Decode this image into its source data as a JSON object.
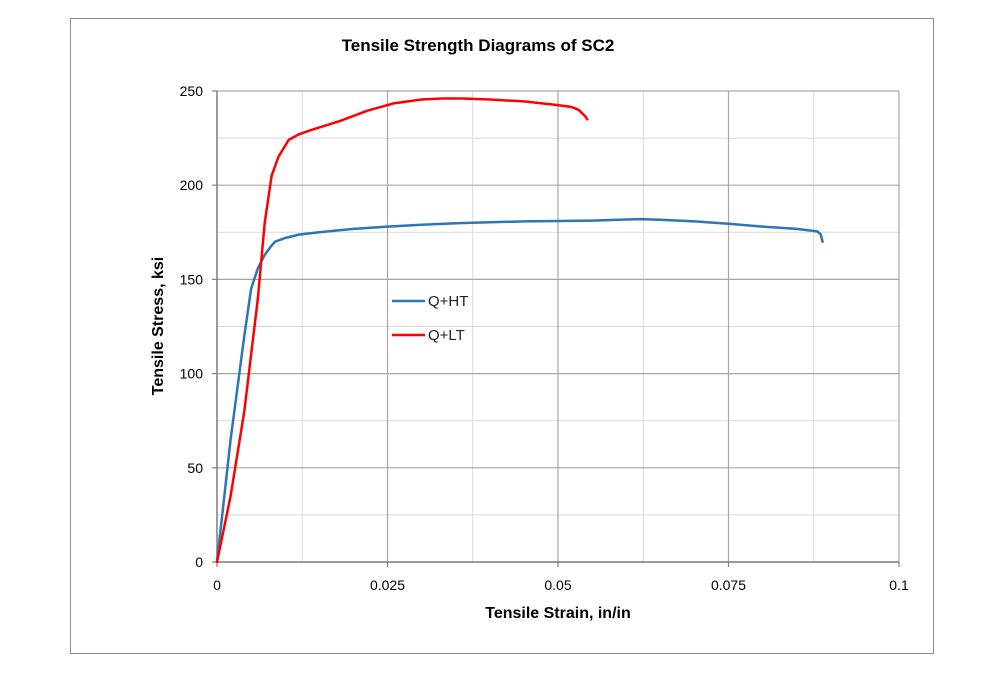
{
  "chart_data": {
    "type": "line",
    "title": "Tensile Strength Diagrams of SC2",
    "xlabel": "Tensile Strain, in/in",
    "ylabel": "Tensile  Stress, ksi",
    "xlim": [
      0,
      0.1
    ],
    "ylim": [
      0,
      250
    ],
    "xticks": [
      0,
      0.025,
      0.05,
      0.075,
      0.1
    ],
    "xtick_labels": [
      "0",
      "0.025",
      "0.05",
      "0.075",
      "0.1"
    ],
    "yticks": [
      0,
      50,
      100,
      150,
      200,
      250
    ],
    "ytick_labels": [
      "0",
      "50",
      "100",
      "150",
      "200",
      "250"
    ],
    "grid": true,
    "legend_position": "center-left",
    "series": [
      {
        "name": "Q+HT",
        "color": "#2e75b6",
        "points": [
          [
            0,
            0
          ],
          [
            0.002,
            65
          ],
          [
            0.004,
            120
          ],
          [
            0.005,
            145
          ],
          [
            0.006,
            156
          ],
          [
            0.007,
            163
          ],
          [
            0.008,
            168
          ],
          [
            0.0085,
            170
          ],
          [
            0.01,
            172
          ],
          [
            0.012,
            173.8
          ],
          [
            0.015,
            175
          ],
          [
            0.02,
            176.8
          ],
          [
            0.025,
            178
          ],
          [
            0.03,
            179
          ],
          [
            0.035,
            179.8
          ],
          [
            0.04,
            180.3
          ],
          [
            0.045,
            180.8
          ],
          [
            0.05,
            181
          ],
          [
            0.055,
            181.2
          ],
          [
            0.06,
            181.8
          ],
          [
            0.062,
            182
          ],
          [
            0.065,
            181.7
          ],
          [
            0.07,
            180.8
          ],
          [
            0.075,
            179.5
          ],
          [
            0.08,
            178
          ],
          [
            0.085,
            176.8
          ],
          [
            0.088,
            175.5
          ],
          [
            0.0885,
            174
          ],
          [
            0.0888,
            170
          ]
        ]
      },
      {
        "name": "Q+LT",
        "color": "#ff0000",
        "points": [
          [
            0,
            0
          ],
          [
            0.002,
            35
          ],
          [
            0.004,
            80
          ],
          [
            0.006,
            140
          ],
          [
            0.007,
            180
          ],
          [
            0.008,
            205
          ],
          [
            0.009,
            215
          ],
          [
            0.0105,
            224
          ],
          [
            0.012,
            227
          ],
          [
            0.014,
            229.5
          ],
          [
            0.018,
            234
          ],
          [
            0.022,
            239.5
          ],
          [
            0.026,
            243.5
          ],
          [
            0.03,
            245.5
          ],
          [
            0.033,
            246
          ],
          [
            0.036,
            246
          ],
          [
            0.04,
            245.5
          ],
          [
            0.045,
            244.5
          ],
          [
            0.05,
            242.5
          ],
          [
            0.052,
            241.5
          ],
          [
            0.053,
            240
          ],
          [
            0.054,
            236.5
          ],
          [
            0.0543,
            235
          ]
        ]
      }
    ]
  }
}
